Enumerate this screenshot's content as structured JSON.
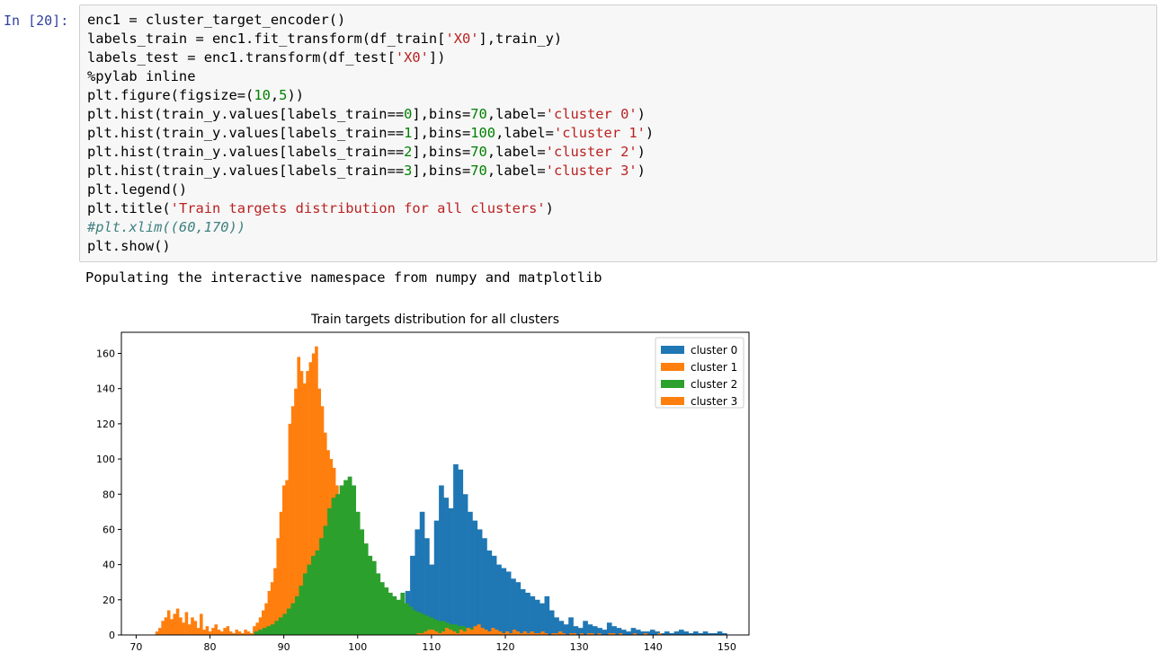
{
  "cell": {
    "prompt": "In [20]:",
    "code_lines": [
      [
        {
          "t": "enc1 = cluster_target_encoder()"
        }
      ],
      [
        {
          "t": "labels_train = enc1.fit_transform(df_train["
        },
        {
          "t": "'X0'",
          "c": "str"
        },
        {
          "t": "],train_y)"
        }
      ],
      [
        {
          "t": "labels_test = enc1.transform(df_test["
        },
        {
          "t": "'X0'",
          "c": "str"
        },
        {
          "t": "])"
        }
      ],
      [
        {
          "t": "%pylab inline"
        }
      ],
      [
        {
          "t": "plt.figure(figsize=("
        },
        {
          "t": "10",
          "c": "num"
        },
        {
          "t": ","
        },
        {
          "t": "5",
          "c": "num"
        },
        {
          "t": "))"
        }
      ],
      [
        {
          "t": "plt.hist(train_y.values[labels_train=="
        },
        {
          "t": "0",
          "c": "num"
        },
        {
          "t": "],bins="
        },
        {
          "t": "70",
          "c": "num"
        },
        {
          "t": ",label="
        },
        {
          "t": "'cluster 0'",
          "c": "str"
        },
        {
          "t": ")"
        }
      ],
      [
        {
          "t": "plt.hist(train_y.values[labels_train=="
        },
        {
          "t": "1",
          "c": "num"
        },
        {
          "t": "],bins="
        },
        {
          "t": "100",
          "c": "num"
        },
        {
          "t": ",label="
        },
        {
          "t": "'cluster 1'",
          "c": "str"
        },
        {
          "t": ")"
        }
      ],
      [
        {
          "t": "plt.hist(train_y.values[labels_train=="
        },
        {
          "t": "2",
          "c": "num"
        },
        {
          "t": "],bins="
        },
        {
          "t": "70",
          "c": "num"
        },
        {
          "t": ",label="
        },
        {
          "t": "'cluster 2'",
          "c": "str"
        },
        {
          "t": ")"
        }
      ],
      [
        {
          "t": "plt.hist(train_y.values[labels_train=="
        },
        {
          "t": "3",
          "c": "num"
        },
        {
          "t": "],bins="
        },
        {
          "t": "70",
          "c": "num"
        },
        {
          "t": ",label="
        },
        {
          "t": "'cluster 3'",
          "c": "str"
        },
        {
          "t": ")"
        }
      ],
      [
        {
          "t": "plt.legend()"
        }
      ],
      [
        {
          "t": "plt.title("
        },
        {
          "t": "'Train targets distribution for all clusters'",
          "c": "str"
        },
        {
          "t": ")"
        }
      ],
      [
        {
          "t": "#plt.xlim((60,170))",
          "c": "cmt"
        }
      ],
      [
        {
          "t": "plt.show()"
        }
      ]
    ],
    "output_text": "Populating the interactive namespace from numpy and matplotlib"
  },
  "colors": {
    "cluster0": "#1f77b4",
    "cluster1": "#ff7f0e",
    "cluster2": "#2ca02c",
    "cluster3": "#ff7f0e",
    "prompt": "#303F9F"
  },
  "chart_data": {
    "type": "bar",
    "title": "Train targets distribution for all clusters",
    "xlim": [
      68,
      153
    ],
    "ylim": [
      0,
      172
    ],
    "xticks": [
      70,
      80,
      90,
      100,
      110,
      120,
      130,
      140,
      150
    ],
    "yticks": [
      0,
      20,
      40,
      60,
      80,
      100,
      120,
      140,
      160
    ],
    "legend_position": "top-right",
    "grid": false,
    "series": [
      {
        "name": "cluster 0",
        "color": "#1f77b4",
        "bin_start": 104.5,
        "bin_width": 0.65,
        "values": [
          5,
          8,
          15,
          25,
          45,
          60,
          70,
          55,
          40,
          65,
          85,
          78,
          72,
          97,
          94,
          80,
          70,
          65,
          60,
          55,
          48,
          45,
          40,
          38,
          36,
          32,
          30,
          26,
          24,
          22,
          20,
          18,
          22,
          14,
          10,
          8,
          6,
          10,
          5,
          4,
          8,
          6,
          5,
          4,
          3,
          7,
          5,
          4,
          3,
          2,
          4,
          3,
          2,
          2,
          3,
          2,
          1,
          2,
          1,
          2,
          3,
          2,
          1,
          2,
          1,
          2,
          1,
          1,
          2,
          1
        ]
      },
      {
        "name": "cluster 1",
        "color": "#ff7f0e",
        "bin_start": 72.6,
        "bin_width": 0.4,
        "values": [
          2,
          4,
          8,
          10,
          14,
          9,
          12,
          15,
          10,
          7,
          13,
          6,
          10,
          8,
          4,
          12,
          3,
          5,
          2,
          4,
          6,
          3,
          2,
          4,
          5,
          2,
          1,
          3,
          2,
          1,
          3,
          2,
          1,
          5,
          7,
          10,
          14,
          18,
          25,
          30,
          38,
          55,
          70,
          85,
          88,
          120,
          130,
          140,
          158,
          150,
          143,
          150,
          155,
          160,
          164,
          140,
          130,
          115,
          105,
          100,
          95,
          85,
          80,
          70,
          60,
          55,
          50,
          45,
          40,
          35,
          30,
          25,
          20,
          16,
          12,
          10,
          8,
          6,
          5,
          4,
          3,
          3,
          2,
          2,
          1,
          1,
          1,
          2,
          1,
          1,
          0,
          1,
          0,
          1,
          1,
          0,
          0,
          1,
          0,
          1
        ]
      },
      {
        "name": "cluster 2",
        "color": "#2ca02c",
        "bin_start": 86,
        "bin_width": 0.55,
        "values": [
          2,
          3,
          4,
          5,
          6,
          8,
          10,
          12,
          15,
          18,
          22,
          28,
          35,
          40,
          45,
          48,
          55,
          62,
          72,
          78,
          80,
          85,
          88,
          90,
          85,
          70,
          60,
          52,
          45,
          42,
          35,
          30,
          27,
          24,
          22,
          20,
          24,
          18,
          16,
          14,
          13,
          12,
          11,
          10,
          9,
          8,
          8,
          7,
          6,
          6,
          5,
          5,
          4,
          4,
          3,
          3,
          3,
          2,
          2,
          2,
          2,
          1,
          1,
          1,
          1,
          1,
          0,
          1,
          0,
          1
        ]
      },
      {
        "name": "cluster 3",
        "color": "#ff7f0e",
        "bin_start": 108,
        "bin_width": 0.48,
        "values": [
          1,
          1,
          2,
          3,
          3,
          2,
          1,
          2,
          4,
          3,
          2,
          1,
          3,
          2,
          4,
          3,
          5,
          6,
          4,
          3,
          2,
          4,
          3,
          2,
          1,
          2,
          1,
          3,
          2,
          1,
          2,
          1,
          2,
          1,
          1,
          2,
          1,
          0,
          1,
          1,
          2,
          1,
          0,
          1,
          1,
          0,
          1,
          0,
          1,
          1,
          0,
          1,
          0,
          0,
          1,
          1,
          0,
          1,
          0,
          0,
          0,
          1,
          0,
          0,
          1,
          0,
          0,
          0,
          1,
          0
        ]
      }
    ]
  }
}
